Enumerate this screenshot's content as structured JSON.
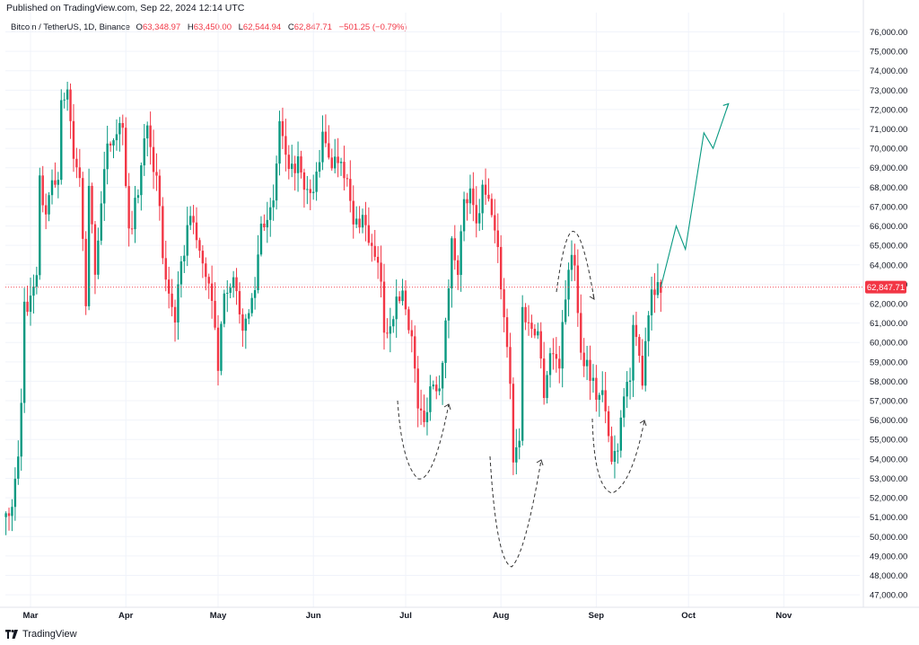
{
  "header": {
    "published": "Published on TradingView.com, Sep 22, 2024 12:14 UTC"
  },
  "legend": {
    "symbol": "Bitcoin / TetherUS, 1D, Binance",
    "o_label": "O",
    "o_value": "63,348.97",
    "h_label": "H",
    "h_value": "63,450.00",
    "l_label": "L",
    "l_value": "62,544.94",
    "c_label": "C",
    "c_value": "62,847.71",
    "change": "−501.25 (−0.79%)"
  },
  "footer": {
    "brand": "TradingView"
  },
  "colors": {
    "up": "#089981",
    "down": "#f23645",
    "grid": "#f0f3fa",
    "text": "#131722",
    "annot": "#333333"
  },
  "chart_data": {
    "type": "candlestick",
    "price_label": "62,847.71",
    "last_price": 62847.71,
    "ylim": [
      46500,
      76700
    ],
    "y_ticks": [
      47000,
      48000,
      49000,
      50000,
      51000,
      52000,
      53000,
      54000,
      55000,
      56000,
      57000,
      58000,
      59000,
      60000,
      61000,
      62000,
      63000,
      64000,
      65000,
      66000,
      67000,
      68000,
      69000,
      70000,
      71000,
      72000,
      73000,
      74000,
      75000,
      76000
    ],
    "y_tick_labels": [
      "47,000.00",
      "48,000.00",
      "49,000.00",
      "50,000.00",
      "51,000.00",
      "52,000.00",
      "53,000.00",
      "54,000.00",
      "55,000.00",
      "56,000.00",
      "57,000.00",
      "58,000.00",
      "59,000.00",
      "60,000.00",
      "61,000.00",
      "62,000.00",
      "63,000.00",
      "64,000.00",
      "65,000.00",
      "66,000.00",
      "67,000.00",
      "68,000.00",
      "69,000.00",
      "70,000.00",
      "71,000.00",
      "72,000.00",
      "73,000.00",
      "74,000.00",
      "75,000.00",
      "76,000.00"
    ],
    "x_ticks": [
      {
        "label": "Mar",
        "date": "2024-03-01"
      },
      {
        "label": "Apr",
        "date": "2024-04-01"
      },
      {
        "label": "May",
        "date": "2024-05-01"
      },
      {
        "label": "Jun",
        "date": "2024-06-01"
      },
      {
        "label": "Jul",
        "date": "2024-07-01"
      },
      {
        "label": "Aug",
        "date": "2024-08-01"
      },
      {
        "label": "Sep",
        "date": "2024-09-01"
      },
      {
        "label": "Oct",
        "date": "2024-10-01"
      },
      {
        "label": "Nov",
        "date": "2024-11-01"
      }
    ],
    "start_date": "2024-02-22",
    "close_path": [
      [
        "2024-02-22",
        51000
      ],
      [
        "2024-02-24",
        51500
      ],
      [
        "2024-02-26",
        54000
      ],
      [
        "2024-02-27",
        57000
      ],
      [
        "2024-02-28",
        62500
      ],
      [
        "2024-02-29",
        61200
      ],
      [
        "2024-03-01",
        62400
      ],
      [
        "2024-03-03",
        63100
      ],
      [
        "2024-03-04",
        68300
      ],
      [
        "2024-03-06",
        66200
      ],
      [
        "2024-03-08",
        68300
      ],
      [
        "2024-03-10",
        68500
      ],
      [
        "2024-03-11",
        72100
      ],
      [
        "2024-03-13",
        73100
      ],
      [
        "2024-03-15",
        69500
      ],
      [
        "2024-03-17",
        68300
      ],
      [
        "2024-03-19",
        62000
      ],
      [
        "2024-03-20",
        67800
      ],
      [
        "2024-03-22",
        63800
      ],
      [
        "2024-03-24",
        67200
      ],
      [
        "2024-03-26",
        69900
      ],
      [
        "2024-03-28",
        70800
      ],
      [
        "2024-03-31",
        71300
      ],
      [
        "2024-04-02",
        65500
      ],
      [
        "2024-04-05",
        67800
      ],
      [
        "2024-04-08",
        71600
      ],
      [
        "2024-04-10",
        69200
      ],
      [
        "2024-04-12",
        67100
      ],
      [
        "2024-04-13",
        64000
      ],
      [
        "2024-04-17",
        61300
      ],
      [
        "2024-04-19",
        63800
      ],
      [
        "2024-04-22",
        66800
      ],
      [
        "2024-04-25",
        64500
      ],
      [
        "2024-04-28",
        63100
      ],
      [
        "2024-04-30",
        60600
      ],
      [
        "2024-05-01",
        58300
      ],
      [
        "2024-05-03",
        62900
      ],
      [
        "2024-05-06",
        63200
      ],
      [
        "2024-05-08",
        61200
      ],
      [
        "2024-05-10",
        60800
      ],
      [
        "2024-05-13",
        62900
      ],
      [
        "2024-05-15",
        66200
      ],
      [
        "2024-05-19",
        66900
      ],
      [
        "2024-05-21",
        71400
      ],
      [
        "2024-05-24",
        68500
      ],
      [
        "2024-05-27",
        69400
      ],
      [
        "2024-05-29",
        67600
      ],
      [
        "2024-06-01",
        67700
      ],
      [
        "2024-06-04",
        70500
      ],
      [
        "2024-06-07",
        69300
      ],
      [
        "2024-06-10",
        69600
      ],
      [
        "2024-06-12",
        68200
      ],
      [
        "2024-06-14",
        66000
      ],
      [
        "2024-06-17",
        66500
      ],
      [
        "2024-06-20",
        64800
      ],
      [
        "2024-06-23",
        63200
      ],
      [
        "2024-06-24",
        60300
      ],
      [
        "2024-06-27",
        61600
      ],
      [
        "2024-06-30",
        62700
      ],
      [
        "2024-07-03",
        60200
      ],
      [
        "2024-07-05",
        56700
      ],
      [
        "2024-07-07",
        55800
      ],
      [
        "2024-07-09",
        57800
      ],
      [
        "2024-07-12",
        57900
      ],
      [
        "2024-07-14",
        60800
      ],
      [
        "2024-07-16",
        65100
      ],
      [
        "2024-07-18",
        63900
      ],
      [
        "2024-07-20",
        67100
      ],
      [
        "2024-07-22",
        67600
      ],
      [
        "2024-07-24",
        65900
      ],
      [
        "2024-07-26",
        67800
      ],
      [
        "2024-07-29",
        66800
      ],
      [
        "2024-07-31",
        64600
      ],
      [
        "2024-08-02",
        61400
      ],
      [
        "2024-08-04",
        58100
      ],
      [
        "2024-08-05",
        54000
      ],
      [
        "2024-08-07",
        55100
      ],
      [
        "2024-08-08",
        61700
      ],
      [
        "2024-08-10",
        60900
      ],
      [
        "2024-08-13",
        60600
      ],
      [
        "2024-08-15",
        57500
      ],
      [
        "2024-08-17",
        59500
      ],
      [
        "2024-08-20",
        59000
      ],
      [
        "2024-08-23",
        64100
      ],
      [
        "2024-08-25",
        64200
      ],
      [
        "2024-08-27",
        59400
      ],
      [
        "2024-08-29",
        59000
      ],
      [
        "2024-09-01",
        57300
      ],
      [
        "2024-09-03",
        57400
      ],
      [
        "2024-09-06",
        53900
      ],
      [
        "2024-09-08",
        54800
      ],
      [
        "2024-09-10",
        57600
      ],
      [
        "2024-09-12",
        58100
      ],
      [
        "2024-09-13",
        60500
      ],
      [
        "2024-09-15",
        59200
      ],
      [
        "2024-09-16",
        58200
      ],
      [
        "2024-09-17",
        60300
      ],
      [
        "2024-09-19",
        62900
      ],
      [
        "2024-09-22",
        62848
      ]
    ],
    "projection": [
      [
        "2024-09-22",
        62848
      ],
      [
        "2024-09-27",
        66000
      ],
      [
        "2024-09-30",
        64800
      ],
      [
        "2024-10-06",
        70800
      ],
      [
        "2024-10-09",
        70000
      ],
      [
        "2024-10-14",
        72300
      ]
    ]
  }
}
